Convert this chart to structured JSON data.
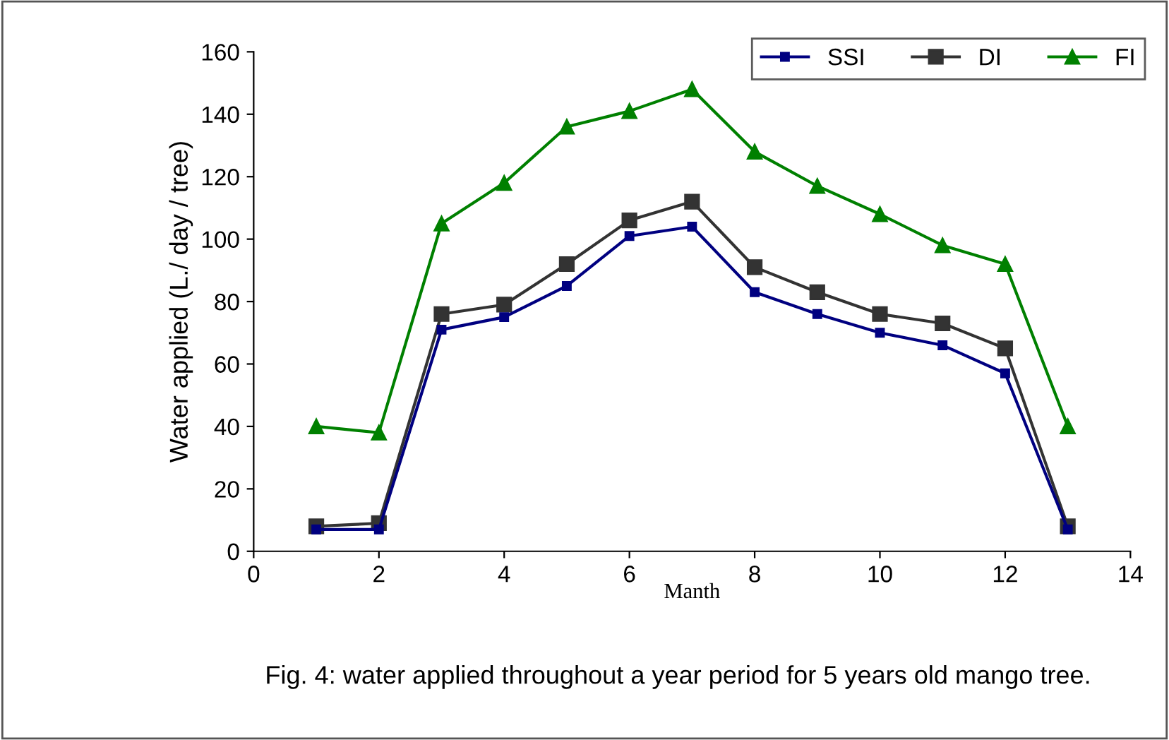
{
  "chart_data": {
    "type": "line",
    "xlabel": "Manth",
    "ylabel": "Water applied (L./ day / tree)",
    "annotations": [
      "Fig. 4: water applied throughout a year period for 5 years old mango tree."
    ],
    "x": [
      1,
      2,
      3,
      4,
      5,
      6,
      7,
      8,
      9,
      10,
      11,
      12,
      13
    ],
    "series": [
      {
        "name": "SSI",
        "color": "#000080",
        "marker": "square",
        "values": [
          7,
          7,
          71,
          75,
          85,
          101,
          104,
          83,
          76,
          70,
          66,
          57,
          7
        ]
      },
      {
        "name": "DI",
        "color": "#333333",
        "marker": "square",
        "values": [
          8,
          9,
          76,
          79,
          92,
          106,
          112,
          91,
          83,
          76,
          73,
          65,
          8
        ]
      },
      {
        "name": "FI",
        "color": "#008000",
        "marker": "triangle",
        "values": [
          40,
          38,
          105,
          118,
          136,
          141,
          148,
          128,
          117,
          108,
          98,
          92,
          40
        ]
      }
    ],
    "xlim": [
      0,
      14
    ],
    "xticks": [
      0,
      2,
      4,
      6,
      8,
      10,
      12,
      14
    ],
    "ylim": [
      0,
      160
    ],
    "yticks": [
      0,
      20,
      40,
      60,
      80,
      100,
      120,
      140,
      160
    ],
    "grid": false,
    "legend": "top right",
    "line_style": "solid"
  }
}
